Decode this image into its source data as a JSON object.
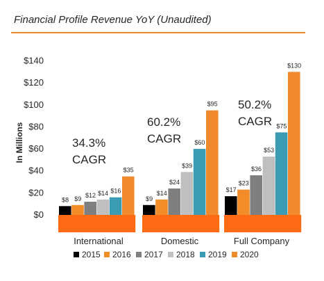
{
  "title": "Financial Profile Revenue YoY (Unaudited)",
  "colors": {
    "accent_rule": "#f08a2c",
    "base_band": "#ff6a13",
    "text": "#262626",
    "series": [
      "#000000",
      "#f28c28",
      "#7f7f7f",
      "#bfbfbf",
      "#3b9bb2",
      "#f08a2c"
    ]
  },
  "chart_data": {
    "type": "bar",
    "title": "Financial Profile Revenue YoY (Unaudited)",
    "ylabel": "In Millions",
    "xlabel": "",
    "ylim": [
      0,
      140
    ],
    "yticks": [
      0,
      20,
      40,
      60,
      80,
      100,
      120,
      140
    ],
    "ytick_labels": [
      "$0",
      "$20",
      "$40",
      "$60",
      "$80",
      "$100",
      "$120",
      "$140"
    ],
    "grid": false,
    "legend_position": "bottom",
    "categories": [
      "International",
      "Domestic",
      "Full Company"
    ],
    "series": [
      {
        "name": "2015",
        "values": [
          8,
          9,
          17
        ],
        "labels": [
          "$8",
          "$9",
          "$17"
        ]
      },
      {
        "name": "2016",
        "values": [
          9,
          14,
          23
        ],
        "labels": [
          "$9",
          "$14",
          "$23"
        ]
      },
      {
        "name": "2017",
        "values": [
          12,
          24,
          36
        ],
        "labels": [
          "$12",
          "$24",
          "$36"
        ]
      },
      {
        "name": "2018",
        "values": [
          14,
          39,
          53
        ],
        "labels": [
          "$14",
          "$39",
          "$53"
        ]
      },
      {
        "name": "2019",
        "values": [
          16,
          60,
          75
        ],
        "labels": [
          "$16",
          "$60",
          "$75"
        ]
      },
      {
        "name": "2020",
        "values": [
          35,
          95,
          130
        ],
        "labels": [
          "$35",
          "$95",
          "$130"
        ]
      }
    ],
    "annotations": [
      {
        "category": "International",
        "lines": [
          "34.3%",
          "CAGR"
        ]
      },
      {
        "category": "Domestic",
        "lines": [
          "60.2%",
          "CAGR"
        ]
      },
      {
        "category": "Full Company",
        "lines": [
          "50.2%",
          "CAGR"
        ]
      }
    ]
  }
}
